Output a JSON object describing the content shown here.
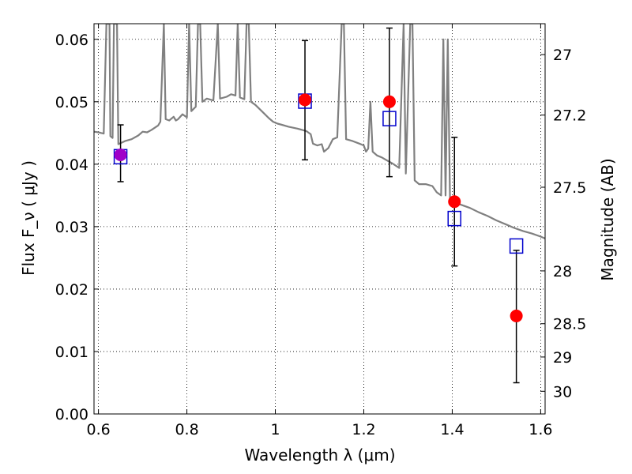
{
  "chart_data": {
    "type": "scatter",
    "title": "",
    "xlabel": "Wavelength  λ (μm)",
    "ylabel": "Flux  F_ν  ( μJy )",
    "y2label": "Magnitude (AB)",
    "xlim": [
      0.59,
      1.61
    ],
    "ylim": [
      0.0,
      0.0625
    ],
    "grid": true,
    "x_ticks": [
      {
        "value": 0.6,
        "label": "0.6"
      },
      {
        "value": 0.8,
        "label": "0.8"
      },
      {
        "value": 1.0,
        "label": "1"
      },
      {
        "value": 1.2,
        "label": "1.2"
      },
      {
        "value": 1.4,
        "label": "1.4"
      },
      {
        "value": 1.6,
        "label": "1.6"
      }
    ],
    "y_ticks": [
      {
        "value": 0.0,
        "label": "0.00"
      },
      {
        "value": 0.01,
        "label": "0.01"
      },
      {
        "value": 0.02,
        "label": "0.02"
      },
      {
        "value": 0.03,
        "label": "0.03"
      },
      {
        "value": 0.04,
        "label": "0.04"
      },
      {
        "value": 0.05,
        "label": "0.05"
      },
      {
        "value": 0.06,
        "label": "0.06"
      }
    ],
    "y2_ticks": [
      {
        "mag": 27,
        "label": "27"
      },
      {
        "mag": 27.2,
        "label": "27.2"
      },
      {
        "mag": 27.5,
        "label": "27.5"
      },
      {
        "mag": 28,
        "label": "28"
      },
      {
        "mag": 28.5,
        "label": "28.5"
      },
      {
        "mag": 29,
        "label": "29"
      },
      {
        "mag": 30,
        "label": "30"
      }
    ],
    "series": [
      {
        "kind": "line",
        "color": "#808080",
        "points": [
          [
            0.59,
            0.0452
          ],
          [
            0.6,
            0.0451
          ],
          [
            0.612,
            0.0449
          ],
          [
            0.618,
            0.0625
          ],
          [
            0.625,
            0.0625
          ],
          [
            0.627,
            0.0445
          ],
          [
            0.632,
            0.0442
          ],
          [
            0.635,
            0.0625
          ],
          [
            0.642,
            0.0625
          ],
          [
            0.645,
            0.0432
          ],
          [
            0.66,
            0.0437
          ],
          [
            0.675,
            0.044
          ],
          [
            0.69,
            0.0446
          ],
          [
            0.7,
            0.0452
          ],
          [
            0.71,
            0.0451
          ],
          [
            0.72,
            0.0455
          ],
          [
            0.735,
            0.0462
          ],
          [
            0.74,
            0.0468
          ],
          [
            0.748,
            0.0625
          ],
          [
            0.752,
            0.0472
          ],
          [
            0.76,
            0.047
          ],
          [
            0.77,
            0.0476
          ],
          [
            0.775,
            0.047
          ],
          [
            0.78,
            0.0472
          ],
          [
            0.79,
            0.048
          ],
          [
            0.8,
            0.0475
          ],
          [
            0.805,
            0.0625
          ],
          [
            0.81,
            0.0485
          ],
          [
            0.82,
            0.0492
          ],
          [
            0.825,
            0.0625
          ],
          [
            0.83,
            0.0625
          ],
          [
            0.835,
            0.05
          ],
          [
            0.845,
            0.0505
          ],
          [
            0.86,
            0.0502
          ],
          [
            0.87,
            0.0625
          ],
          [
            0.875,
            0.0505
          ],
          [
            0.89,
            0.0508
          ],
          [
            0.9,
            0.0512
          ],
          [
            0.91,
            0.051
          ],
          [
            0.915,
            0.0625
          ],
          [
            0.92,
            0.0507
          ],
          [
            0.93,
            0.0504
          ],
          [
            0.935,
            0.0625
          ],
          [
            0.94,
            0.0625
          ],
          [
            0.945,
            0.05
          ],
          [
            0.955,
            0.0495
          ],
          [
            0.965,
            0.0488
          ],
          [
            0.975,
            0.0481
          ],
          [
            0.985,
            0.0474
          ],
          [
            0.995,
            0.0468
          ],
          [
            1.005,
            0.0465
          ],
          [
            1.015,
            0.0463
          ],
          [
            1.03,
            0.046
          ],
          [
            1.05,
            0.0457
          ],
          [
            1.07,
            0.0453
          ],
          [
            1.08,
            0.0448
          ],
          [
            1.085,
            0.0433
          ],
          [
            1.095,
            0.043
          ],
          [
            1.105,
            0.0432
          ],
          [
            1.11,
            0.042
          ],
          [
            1.12,
            0.0426
          ],
          [
            1.13,
            0.044
          ],
          [
            1.14,
            0.0443
          ],
          [
            1.15,
            0.0625
          ],
          [
            1.155,
            0.0625
          ],
          [
            1.16,
            0.044
          ],
          [
            1.175,
            0.0437
          ],
          [
            1.19,
            0.0433
          ],
          [
            1.2,
            0.043
          ],
          [
            1.205,
            0.042
          ],
          [
            1.21,
            0.0425
          ],
          [
            1.215,
            0.05
          ],
          [
            1.22,
            0.042
          ],
          [
            1.23,
            0.0414
          ],
          [
            1.24,
            0.0411
          ],
          [
            1.25,
            0.0407
          ],
          [
            1.265,
            0.0401
          ],
          [
            1.28,
            0.0394
          ],
          [
            1.29,
            0.0625
          ],
          [
            1.295,
            0.0385
          ],
          [
            1.305,
            0.0625
          ],
          [
            1.31,
            0.0625
          ],
          [
            1.315,
            0.0374
          ],
          [
            1.325,
            0.0368
          ],
          [
            1.34,
            0.0368
          ],
          [
            1.355,
            0.0365
          ],
          [
            1.365,
            0.0355
          ],
          [
            1.375,
            0.035
          ],
          [
            1.38,
            0.06
          ],
          [
            1.385,
            0.035
          ],
          [
            1.39,
            0.06
          ],
          [
            1.395,
            0.0345
          ],
          [
            1.405,
            0.034
          ],
          [
            1.42,
            0.0335
          ],
          [
            1.44,
            0.033
          ],
          [
            1.46,
            0.0323
          ],
          [
            1.48,
            0.0317
          ],
          [
            1.5,
            0.031
          ],
          [
            1.52,
            0.0304
          ],
          [
            1.54,
            0.0298
          ],
          [
            1.56,
            0.0293
          ],
          [
            1.58,
            0.0289
          ],
          [
            1.6,
            0.0284
          ],
          [
            1.61,
            0.0281
          ]
        ]
      },
      {
        "kind": "errorbar",
        "color": "#000000",
        "points": [
          {
            "x": 0.65,
            "y": 0.0415,
            "ylow": 0.0372,
            "yhigh": 0.0463
          },
          {
            "x": 1.067,
            "y": 0.0503,
            "ylow": 0.0407,
            "yhigh": 0.0598
          },
          {
            "x": 1.258,
            "y": 0.05,
            "ylow": 0.038,
            "yhigh": 0.0618
          },
          {
            "x": 1.405,
            "y": 0.034,
            "ylow": 0.0237,
            "yhigh": 0.0443
          },
          {
            "x": 1.545,
            "y": 0.0157,
            "ylow": 0.005,
            "yhigh": 0.0262
          }
        ]
      },
      {
        "kind": "scatter-square",
        "color": "#0000cc",
        "points": [
          {
            "x": 0.65,
            "y": 0.0412
          },
          {
            "x": 1.067,
            "y": 0.0501
          },
          {
            "x": 1.258,
            "y": 0.0473
          },
          {
            "x": 1.405,
            "y": 0.0313
          },
          {
            "x": 1.545,
            "y": 0.0269
          }
        ]
      },
      {
        "kind": "scatter-circle",
        "colors": [
          "#a000c8",
          "#ff0000",
          "#ff0000",
          "#ff0000",
          "#ff0000"
        ],
        "points": [
          {
            "x": 0.65,
            "y": 0.0415
          },
          {
            "x": 1.067,
            "y": 0.0503
          },
          {
            "x": 1.258,
            "y": 0.05
          },
          {
            "x": 1.405,
            "y": 0.034
          },
          {
            "x": 1.545,
            "y": 0.0157
          }
        ]
      }
    ]
  }
}
